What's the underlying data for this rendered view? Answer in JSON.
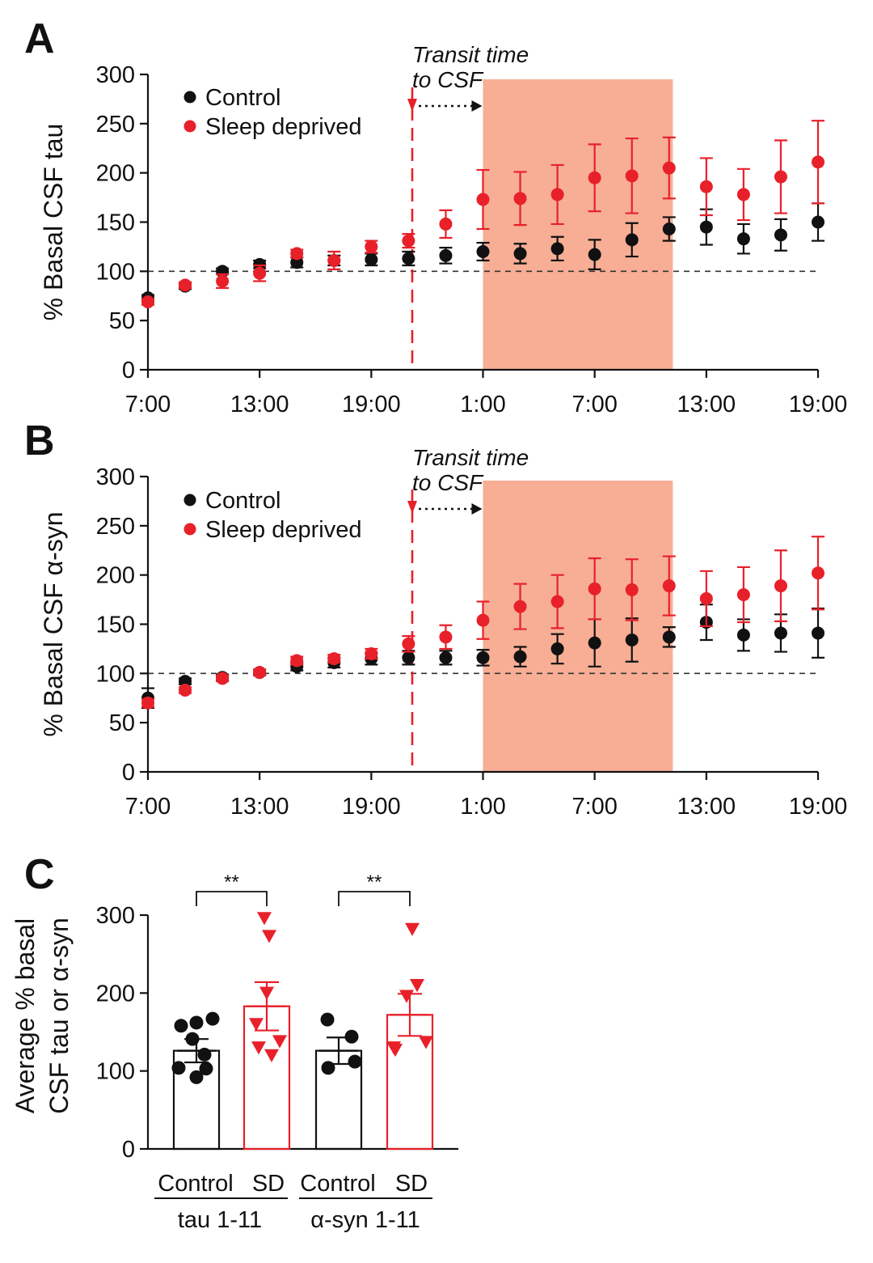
{
  "colors": {
    "control": "#111111",
    "sd": "#e8202a",
    "shade": "#f7ae95",
    "axis": "#111111"
  },
  "chart_data": [
    {
      "type": "scatter",
      "panel": "A",
      "ylabel": "% Basal CSF tau",
      "ylim": [
        0,
        300
      ],
      "yticks": [
        "0",
        "50",
        "100",
        "150",
        "200",
        "250",
        "300"
      ],
      "xticklabels": [
        "7:00",
        "13:00",
        "19:00",
        "1:00",
        "7:00",
        "13:00",
        "19:00"
      ],
      "xlim": [
        0,
        36
      ],
      "reference_line": 100,
      "shaded_region": [
        18,
        28.2
      ],
      "marker_line": 14.2,
      "annotation": {
        "line1": "Transit time",
        "line2": "to CSF"
      },
      "legend": [
        "Control",
        "Sleep deprived"
      ],
      "x": [
        0,
        2,
        4,
        6,
        8,
        10,
        12,
        14,
        16,
        18,
        20,
        22,
        24,
        26,
        28,
        30,
        32,
        34,
        36
      ],
      "series": [
        {
          "name": "Control",
          "values": [
            73,
            85,
            100,
            107,
            109,
            111,
            112,
            113,
            116,
            120,
            118,
            123,
            117,
            132,
            143,
            145,
            133,
            137,
            150
          ],
          "err": [
            3,
            3,
            3,
            4,
            5,
            5,
            6,
            7,
            8,
            9,
            10,
            12,
            15,
            17,
            12,
            18,
            15,
            16,
            19
          ]
        },
        {
          "name": "Sleep deprived",
          "values": [
            69,
            86,
            90,
            98,
            118,
            111,
            125,
            131,
            148,
            173,
            174,
            178,
            195,
            197,
            205,
            186,
            178,
            196,
            211
          ],
          "err": [
            3,
            3,
            7,
            8,
            4,
            9,
            6,
            7,
            14,
            30,
            27,
            30,
            34,
            38,
            31,
            29,
            26,
            37,
            42
          ]
        }
      ]
    },
    {
      "type": "scatter",
      "panel": "B",
      "ylabel": "% Basal CSF α-syn",
      "ylim": [
        0,
        300
      ],
      "yticks": [
        "0",
        "50",
        "100",
        "150",
        "200",
        "250",
        "300"
      ],
      "xticklabels": [
        "7:00",
        "13:00",
        "19:00",
        "1:00",
        "7:00",
        "13:00",
        "19:00"
      ],
      "xlim": [
        0,
        36
      ],
      "reference_line": 100,
      "shaded_region": [
        18,
        28.2
      ],
      "marker_line": 14.2,
      "annotation": {
        "line1": "Transit time",
        "line2": "to CSF"
      },
      "legend": [
        "Control",
        "Sleep deprived"
      ],
      "x": [
        0,
        2,
        4,
        6,
        8,
        10,
        12,
        14,
        16,
        18,
        20,
        22,
        24,
        26,
        28,
        30,
        32,
        34,
        36
      ],
      "series": [
        {
          "name": "Control",
          "values": [
            75,
            92,
            96,
            101,
            107,
            111,
            115,
            116,
            116,
            116,
            117,
            125,
            131,
            134,
            137,
            152,
            139,
            141,
            141
          ],
          "err": [
            10,
            3,
            3,
            3,
            4,
            5,
            6,
            7,
            7,
            8,
            10,
            15,
            24,
            22,
            10,
            18,
            16,
            19,
            25
          ]
        },
        {
          "name": "Sleep deprived",
          "values": [
            70,
            83,
            95,
            101,
            113,
            115,
            120,
            130,
            137,
            154,
            168,
            173,
            186,
            185,
            189,
            176,
            180,
            189,
            202
          ],
          "err": [
            4,
            3,
            3,
            3,
            4,
            4,
            5,
            8,
            12,
            19,
            23,
            27,
            31,
            31,
            30,
            28,
            28,
            36,
            37
          ]
        }
      ]
    },
    {
      "type": "bar",
      "panel": "C",
      "ylabel_line1": "Average % basal",
      "ylabel_line2": "CSF tau or α-syn",
      "ylim": [
        0,
        300
      ],
      "yticks": [
        "0",
        "100",
        "200",
        "300"
      ],
      "categories": [
        "Control",
        "SD",
        "Control",
        "SD"
      ],
      "groups": [
        "tau 1-11",
        "α-syn 1-11"
      ],
      "significance": [
        "**",
        "**"
      ],
      "bars": [
        {
          "group": "tau 1-11",
          "label": "Control",
          "mean": 126,
          "sem": 15,
          "points": [
            158,
            162,
            167,
            141,
            121,
            104,
            103,
            92
          ]
        },
        {
          "group": "tau 1-11",
          "label": "SD",
          "mean": 183,
          "sem": 31,
          "points": [
            296,
            273,
            200,
            160,
            138,
            130,
            120
          ]
        },
        {
          "group": "α-syn 1-11",
          "label": "Control",
          "mean": 126,
          "sem": 17,
          "points": [
            166,
            144,
            112,
            104
          ]
        },
        {
          "group": "α-syn 1-11",
          "label": "SD",
          "mean": 172,
          "sem": 27,
          "points": [
            282,
            210,
            196,
            137,
            130,
            127
          ]
        }
      ]
    }
  ]
}
